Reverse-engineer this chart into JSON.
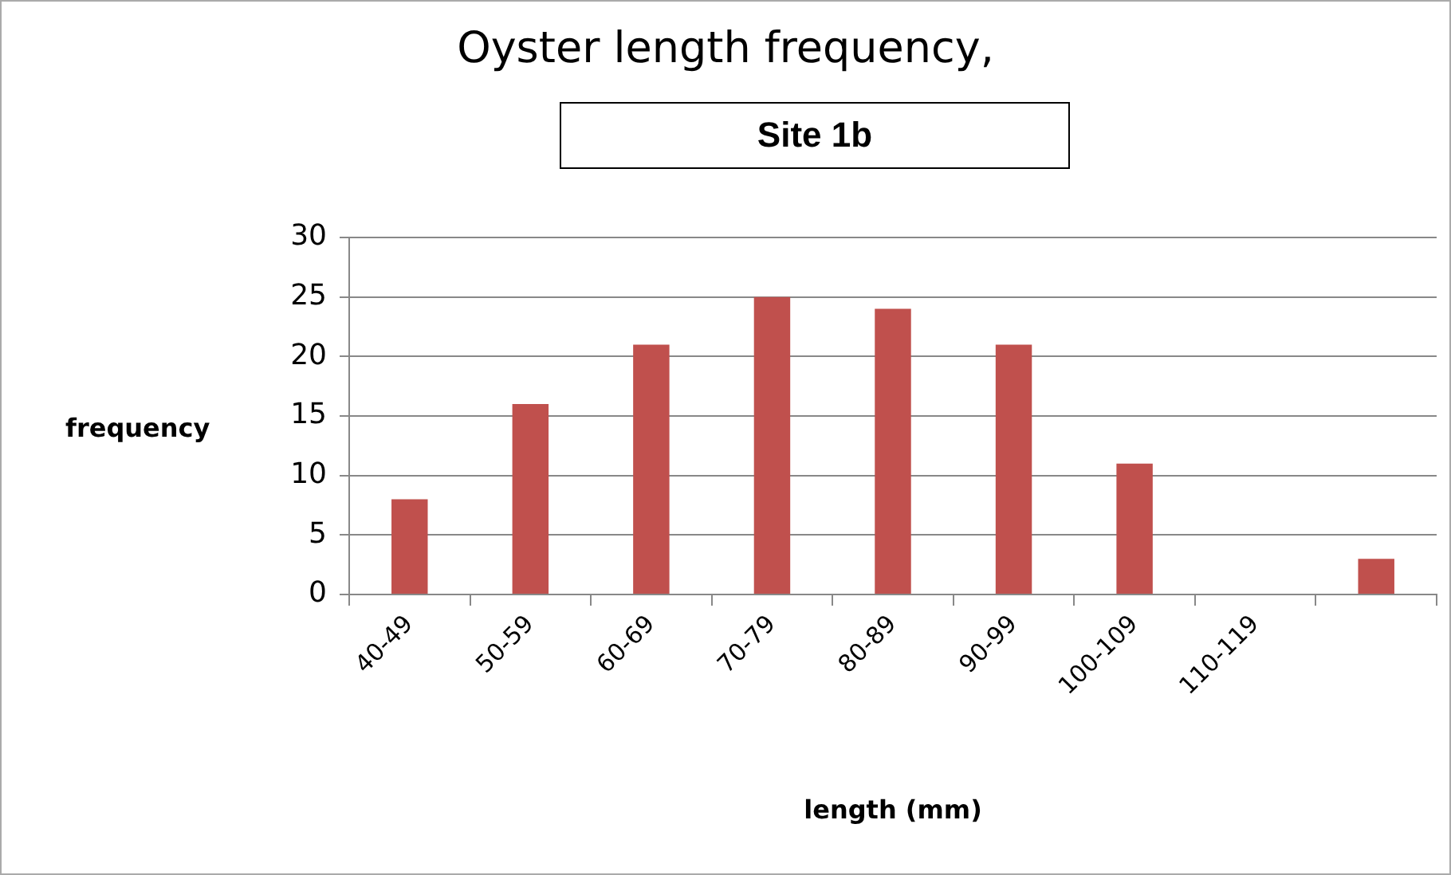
{
  "chart_data": {
    "type": "bar",
    "title": "Oyster length frequency,",
    "subtitle": "Site 1b",
    "xlabel": "length (mm)",
    "ylabel": "frequency",
    "categories": [
      "40-49",
      "50-59",
      "60-69",
      "70-79",
      "80-89",
      "90-99",
      "100-109",
      "110-119",
      null
    ],
    "values": [
      8,
      16,
      21,
      25,
      24,
      21,
      11,
      0,
      3
    ],
    "color": "#c0504d",
    "ylim": [
      0,
      30
    ],
    "yticks": [
      0,
      5,
      10,
      15,
      20,
      25,
      30
    ],
    "grid": "y",
    "legend": false
  }
}
